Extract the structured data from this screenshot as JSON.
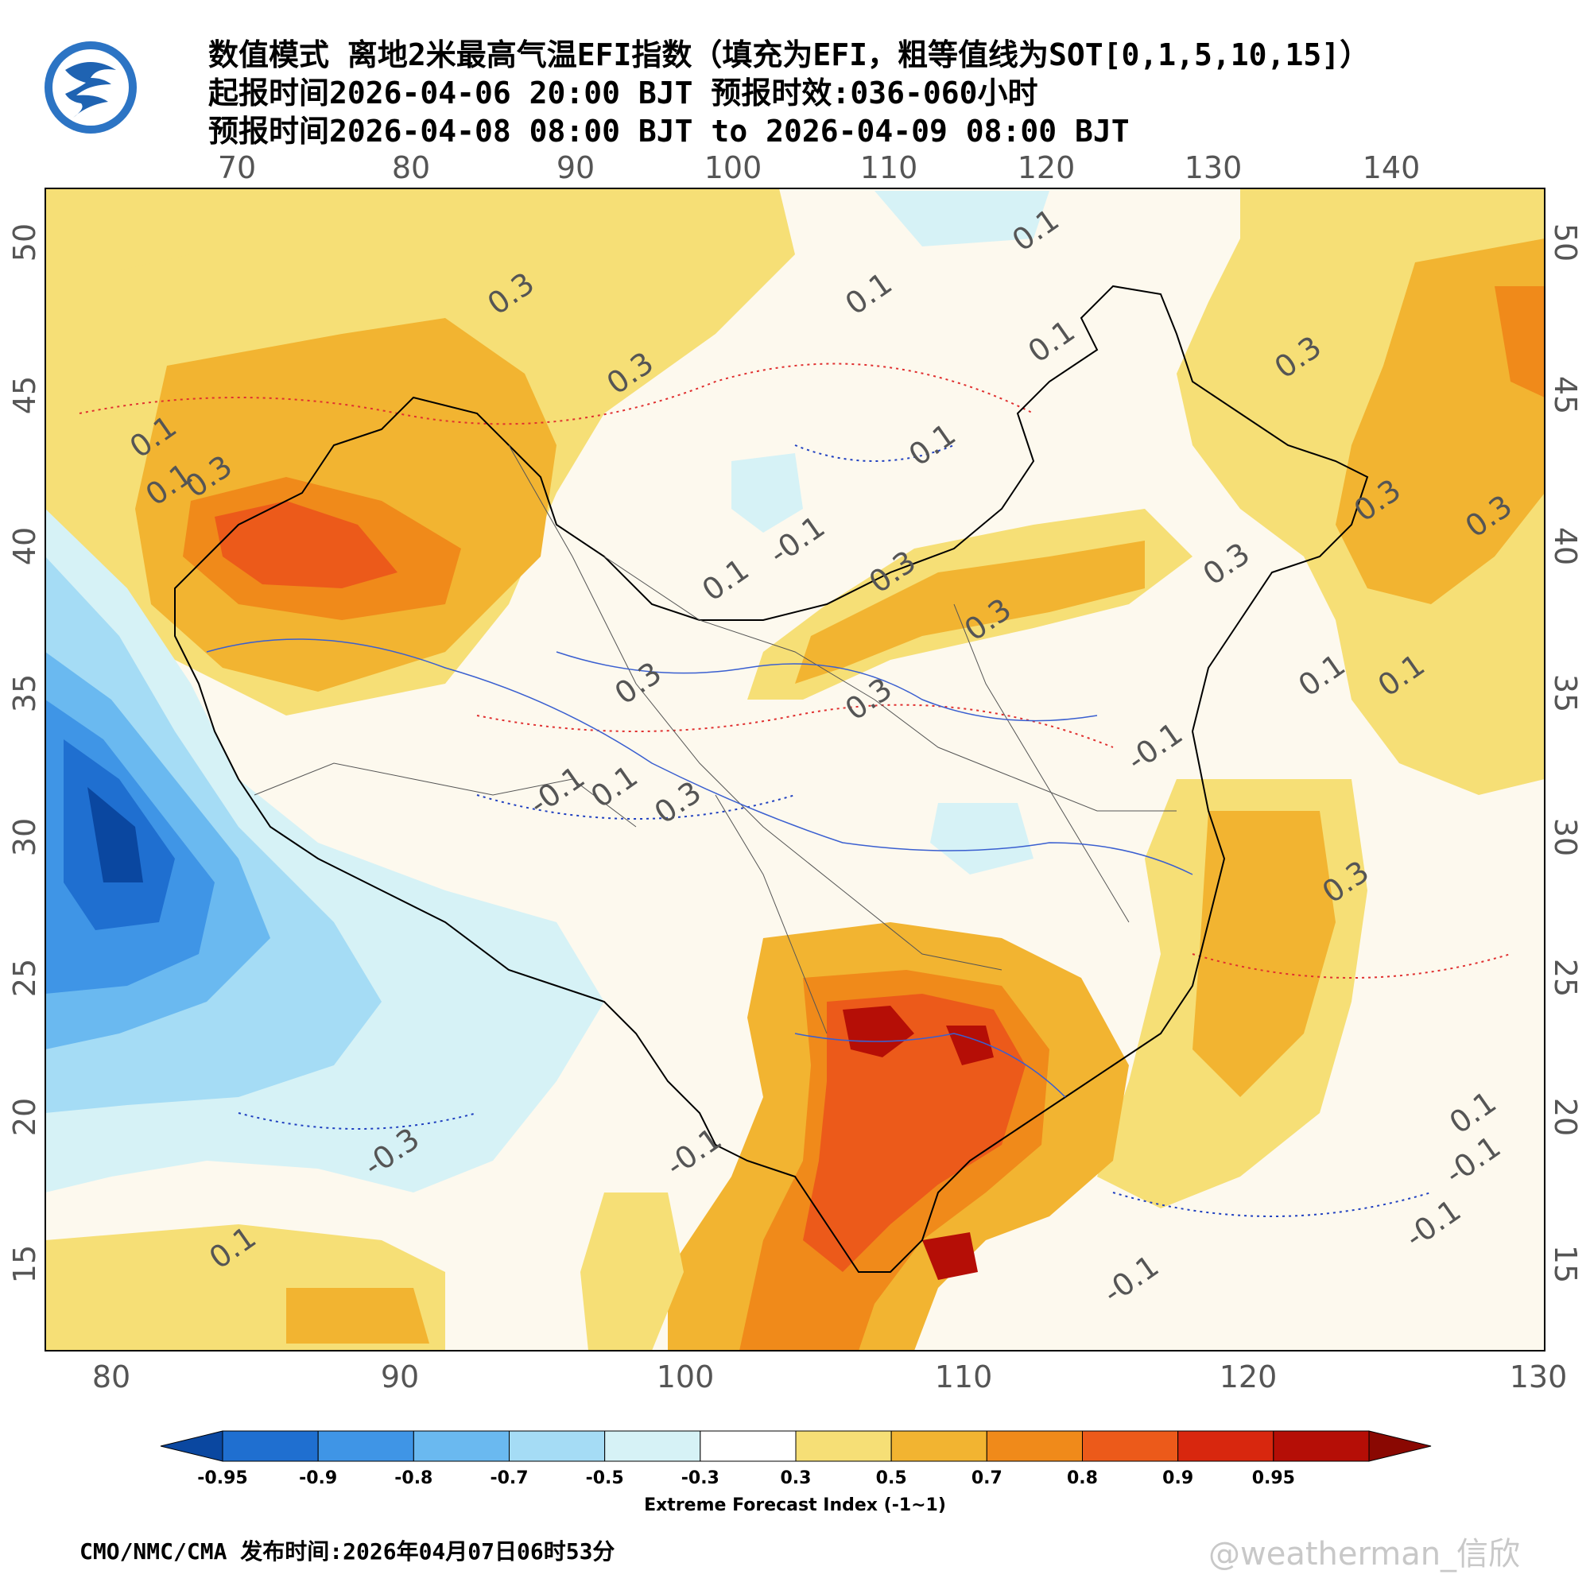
{
  "header": {
    "line1": "数值模式 离地2米最高气温EFI指数（填充为EFI，粗等值线为SOT[0,1,5,10,15]）",
    "line2": "起报时间2026-04-06 20:00 BJT 预报时效:036-060小时",
    "line3": "预报时间2026-04-08 08:00 BJT to 2026-04-09 08:00 BJT"
  },
  "logo": {
    "name": "cma-logo",
    "color": "#1a5fb4"
  },
  "map": {
    "top_lon_ticks": [
      "70",
      "80",
      "90",
      "100",
      "110",
      "120",
      "130",
      "140"
    ],
    "bottom_lon_ticks": [
      "80",
      "90",
      "100",
      "110",
      "120",
      "130"
    ],
    "left_lat_ticks": [
      "50",
      "45",
      "40",
      "35",
      "30",
      "25",
      "20",
      "15"
    ],
    "right_lat_ticks": [
      "50",
      "45",
      "40",
      "35",
      "30",
      "25",
      "20",
      "15"
    ],
    "contour_labels": [
      {
        "text": "0.1",
        "color": "red"
      },
      {
        "text": "0.3",
        "color": "red"
      },
      {
        "text": "0.1",
        "color": "red"
      },
      {
        "text": "0.3",
        "color": "red"
      },
      {
        "text": "0.3",
        "color": "red"
      },
      {
        "text": "0.1",
        "color": "red"
      },
      {
        "text": "0.3",
        "color": "red"
      },
      {
        "text": "0.1",
        "color": "red"
      },
      {
        "text": "0.3",
        "color": "red"
      },
      {
        "text": "0.1",
        "color": "red"
      },
      {
        "text": "0.3",
        "color": "red"
      },
      {
        "text": "0.1",
        "color": "red"
      },
      {
        "text": "0.3",
        "color": "red"
      },
      {
        "text": "0.3",
        "color": "red"
      },
      {
        "text": "0.1",
        "color": "red"
      },
      {
        "text": "0.1",
        "color": "red"
      },
      {
        "text": "0.3",
        "color": "red"
      },
      {
        "text": "0.3",
        "color": "red"
      },
      {
        "text": "0.1",
        "color": "red"
      },
      {
        "text": "0.3",
        "color": "red"
      },
      {
        "text": "0.1",
        "color": "red"
      },
      {
        "text": "0.3",
        "color": "red"
      },
      {
        "text": "0.3",
        "color": "red"
      },
      {
        "text": "0.1",
        "color": "red"
      },
      {
        "text": "-0.1",
        "color": "blue"
      },
      {
        "text": "-0.1",
        "color": "blue"
      },
      {
        "text": "-0.1",
        "color": "blue"
      },
      {
        "text": "-0.3",
        "color": "blue"
      },
      {
        "text": "-0.1",
        "color": "blue"
      },
      {
        "text": "-0.1",
        "color": "blue"
      },
      {
        "text": "-0.1",
        "color": "blue"
      },
      {
        "text": "-0.1",
        "color": "blue"
      },
      {
        "text": "0.1",
        "color": "blue"
      }
    ]
  },
  "colorbar": {
    "title": "Extreme Forecast Index (-1~1)",
    "labels": [
      "-0.95",
      "-0.9",
      "-0.8",
      "-0.7",
      "-0.5",
      "-0.3",
      "0.3",
      "0.5",
      "0.7",
      "0.8",
      "0.9",
      "0.95"
    ],
    "colors": [
      "#0a47a0",
      "#1f6fd0",
      "#3f95e6",
      "#6ab9f0",
      "#a5dcf5",
      "#d6f2f6",
      "#ffffff",
      "#f6df76",
      "#f2b431",
      "#f08a1a",
      "#ec5a1a",
      "#d8270e",
      "#b50e06",
      "#8a0802"
    ]
  },
  "footer": {
    "text": "CMO/NMC/CMA 发布时间:2026年04月07日06时53分"
  },
  "watermark": {
    "text": "@weatherman_信欣"
  }
}
